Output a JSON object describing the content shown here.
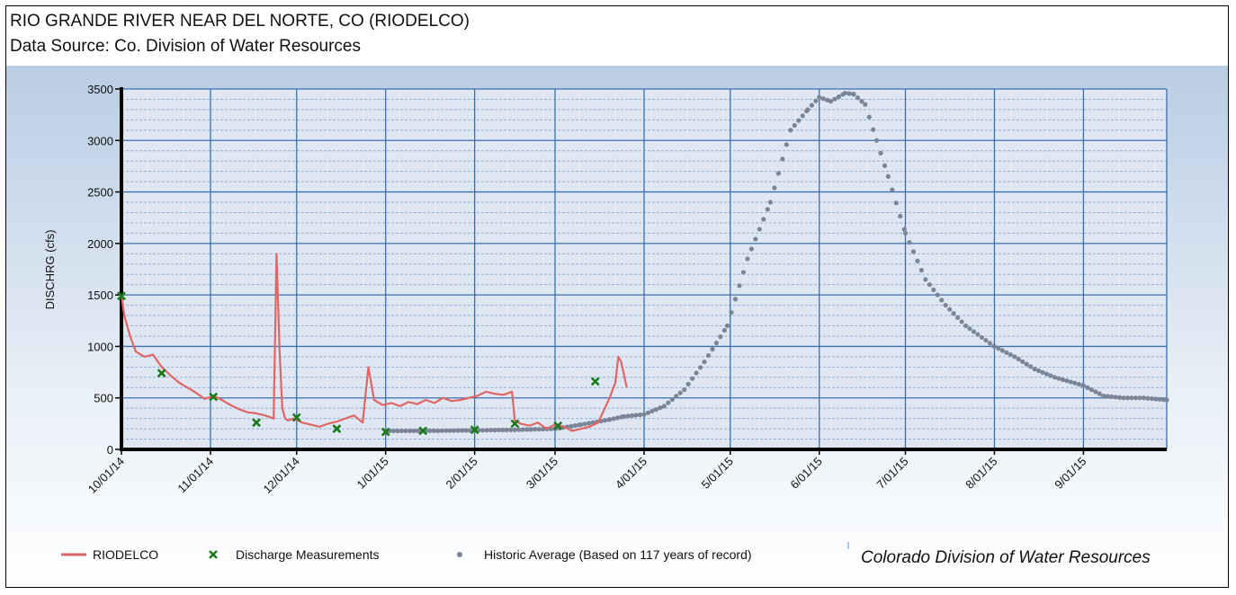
{
  "header": {
    "title": "RIO GRANDE RIVER NEAR DEL NORTE, CO (RIODELCO)",
    "subtitle": "Data Source: Co. Division of Water Resources"
  },
  "credit": "Colorado Division of Water Resources",
  "colors": {
    "riodelco": "#e06666",
    "measurements": "#1a7a1a",
    "historic": "#7a8597",
    "grid": "#3d6fb0",
    "background_top": "#b9cde3",
    "background_bottom": "#ffffff"
  },
  "chart_data": {
    "type": "line",
    "ylabel": "DISCHRG (cfs)",
    "xlabel": "",
    "ylim": [
      0,
      3500
    ],
    "yticks": [
      0,
      500,
      1000,
      1500,
      2000,
      2500,
      3000,
      3500
    ],
    "xlim": [
      "2014-10-01",
      "2015-09-30"
    ],
    "xticks": [
      {
        "date": "2014-10-01",
        "label": "10/01/14"
      },
      {
        "date": "2014-11-01",
        "label": "11/01/14"
      },
      {
        "date": "2014-12-01",
        "label": "12/01/14"
      },
      {
        "date": "2015-01-01",
        "label": "1/01/15"
      },
      {
        "date": "2015-02-01",
        "label": "2/01/15"
      },
      {
        "date": "2015-03-01",
        "label": "3/01/15"
      },
      {
        "date": "2015-04-01",
        "label": "4/01/15"
      },
      {
        "date": "2015-05-01",
        "label": "5/01/15"
      },
      {
        "date": "2015-06-01",
        "label": "6/01/15"
      },
      {
        "date": "2015-07-01",
        "label": "7/01/15"
      },
      {
        "date": "2015-08-01",
        "label": "8/01/15"
      },
      {
        "date": "2015-09-01",
        "label": "9/01/15"
      }
    ],
    "grid": true,
    "legend_position": "bottom",
    "series": [
      {
        "name": "RIODELCO",
        "style": "line",
        "x": [
          "2014-10-01",
          "2014-10-02",
          "2014-10-04",
          "2014-10-06",
          "2014-10-09",
          "2014-10-12",
          "2014-10-15",
          "2014-10-18",
          "2014-10-21",
          "2014-10-24",
          "2014-10-27",
          "2014-10-30",
          "2014-11-02",
          "2014-11-05",
          "2014-11-08",
          "2014-11-11",
          "2014-11-14",
          "2014-11-17",
          "2014-11-20",
          "2014-11-23",
          "2014-11-24",
          "2014-11-25",
          "2014-11-26",
          "2014-11-27",
          "2014-11-28",
          "2014-11-30",
          "2014-12-03",
          "2014-12-06",
          "2014-12-09",
          "2014-12-12",
          "2014-12-15",
          "2014-12-18",
          "2014-12-21",
          "2014-12-24",
          "2014-12-26",
          "2014-12-28",
          "2014-12-31",
          "2015-01-03",
          "2015-01-06",
          "2015-01-09",
          "2015-01-12",
          "2015-01-15",
          "2015-01-18",
          "2015-01-21",
          "2015-01-24",
          "2015-01-27",
          "2015-01-30",
          "2015-02-02",
          "2015-02-05",
          "2015-02-08",
          "2015-02-11",
          "2015-02-14",
          "2015-02-15",
          "2015-02-17",
          "2015-02-20",
          "2015-02-23",
          "2015-02-26",
          "2015-03-01",
          "2015-03-04",
          "2015-03-07",
          "2015-03-10",
          "2015-03-13",
          "2015-03-16",
          "2015-03-18",
          "2015-03-20",
          "2015-03-22",
          "2015-03-23",
          "2015-03-24",
          "2015-03-26"
        ],
        "values": [
          1500,
          1300,
          1100,
          950,
          900,
          920,
          800,
          720,
          650,
          600,
          550,
          490,
          520,
          480,
          430,
          390,
          360,
          350,
          330,
          300,
          1900,
          1000,
          400,
          300,
          280,
          300,
          260,
          240,
          220,
          250,
          270,
          300,
          330,
          260,
          800,
          480,
          430,
          450,
          420,
          460,
          440,
          480,
          450,
          500,
          470,
          480,
          500,
          520,
          560,
          540,
          530,
          560,
          280,
          250,
          230,
          260,
          200,
          240,
          220,
          180,
          200,
          220,
          260,
          380,
          500,
          650,
          900,
          850,
          600
        ]
      },
      {
        "name": "Discharge Measurements",
        "style": "marker",
        "x": [
          "2014-10-01",
          "2014-10-15",
          "2014-11-02",
          "2014-11-17",
          "2014-12-01",
          "2014-12-15",
          "2015-01-01",
          "2015-01-14",
          "2015-02-01",
          "2015-02-15",
          "2015-03-02",
          "2015-03-15"
        ],
        "values": [
          1490,
          740,
          510,
          260,
          310,
          200,
          170,
          180,
          190,
          250,
          230,
          660
        ]
      },
      {
        "name": "Historic Average (Based on 117 years of record)",
        "style": "dots",
        "x": [
          "2015-01-01",
          "2015-01-15",
          "2015-02-01",
          "2015-02-15",
          "2015-03-01",
          "2015-03-10",
          "2015-03-20",
          "2015-03-25",
          "2015-04-01",
          "2015-04-08",
          "2015-04-15",
          "2015-04-22",
          "2015-04-30",
          "2015-05-07",
          "2015-05-15",
          "2015-05-22",
          "2015-05-28",
          "2015-06-01",
          "2015-06-05",
          "2015-06-10",
          "2015-06-13",
          "2015-06-17",
          "2015-06-21",
          "2015-06-25",
          "2015-07-01",
          "2015-07-08",
          "2015-07-15",
          "2015-07-22",
          "2015-08-01",
          "2015-08-08",
          "2015-08-15",
          "2015-08-22",
          "2015-09-01",
          "2015-09-08",
          "2015-09-15",
          "2015-09-22",
          "2015-09-30"
        ],
        "values": [
          180,
          180,
          185,
          190,
          200,
          240,
          290,
          320,
          340,
          420,
          580,
          850,
          1200,
          1850,
          2400,
          3100,
          3300,
          3420,
          3380,
          3460,
          3450,
          3350,
          3000,
          2650,
          2100,
          1650,
          1400,
          1200,
          1000,
          900,
          780,
          700,
          620,
          520,
          500,
          500,
          480
        ]
      }
    ]
  }
}
